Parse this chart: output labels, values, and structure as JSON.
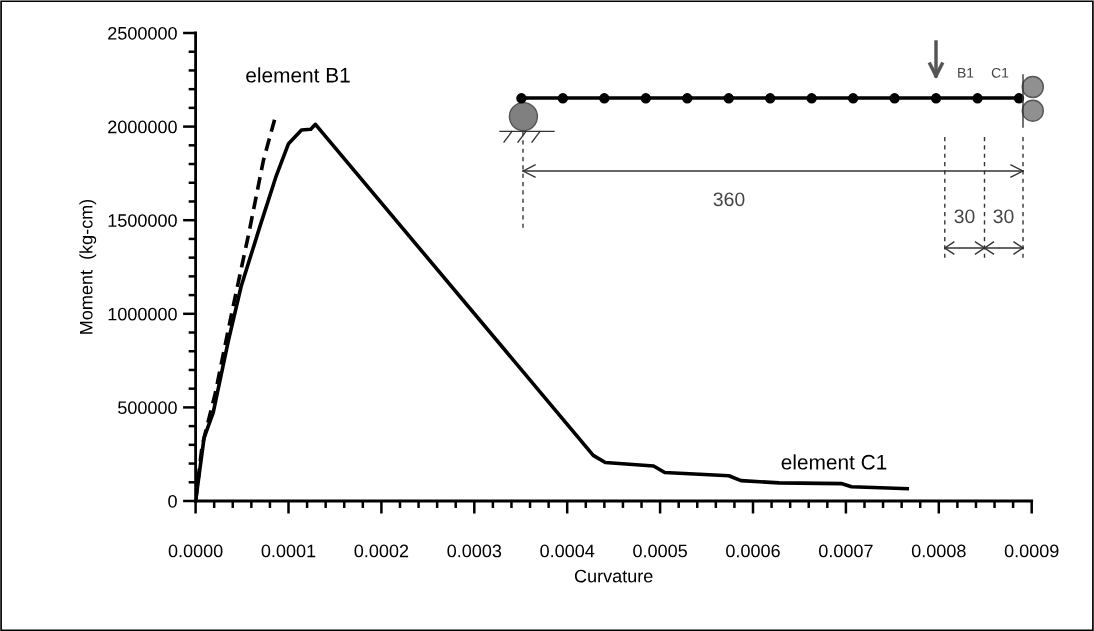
{
  "chart_data": {
    "type": "line",
    "xlabel": "Curvature",
    "ylabel": "Moment  (kg-cm)",
    "xlim": [
      0,
      0.0009
    ],
    "ylim": [
      0,
      2500000
    ],
    "xticks": [
      {
        "value": 0,
        "label": "0.0000"
      },
      {
        "value": 0.0001,
        "label": "0.0001"
      },
      {
        "value": 0.0002,
        "label": "0.0002"
      },
      {
        "value": 0.0003,
        "label": "0.0003"
      },
      {
        "value": 0.0004,
        "label": "0.0004"
      },
      {
        "value": 0.0005,
        "label": "0.0005"
      },
      {
        "value": 0.0006,
        "label": "0.0006"
      },
      {
        "value": 0.0007,
        "label": "0.0007"
      },
      {
        "value": 0.0008,
        "label": "0.0008"
      },
      {
        "value": 0.0009,
        "label": "0.0009"
      }
    ],
    "yticks": [
      0,
      500000,
      1000000,
      1500000,
      2000000,
      2500000
    ],
    "grid": false,
    "legend": false,
    "marker": "none",
    "series": [
      {
        "name": "element B1",
        "color": "#000000",
        "line_style": "dashed",
        "x": [
          0,
          7e-06,
          2.1e-05,
          3.9e-05,
          5.7e-05,
          7.3e-05,
          8.5e-05
        ],
        "values": [
          0,
          295000,
          572000,
          1007000,
          1423000,
          1820000,
          2037000
        ]
      },
      {
        "name": "element C1",
        "color": "#000000",
        "line_style": "solid",
        "x": [
          0,
          9.1e-06,
          1.9e-05,
          3.5e-05,
          4.9e-05,
          6.9e-05,
          8.7e-05,
          0.0001,
          0.000114,
          0.000124,
          0.000129,
          0.000428,
          0.000441,
          0.000493,
          0.000505,
          0.000574,
          0.000587,
          0.000628,
          0.000695,
          0.000706,
          0.000766
        ],
        "values": [
          0,
          337000,
          473000,
          850000,
          1146000,
          1463000,
          1740000,
          1909000,
          1982000,
          1986000,
          2012000,
          244000,
          206000,
          187000,
          152000,
          135000,
          109000,
          97000,
          93000,
          76000,
          66000
        ]
      }
    ],
    "annotations": [
      "B1",
      "C1",
      "360",
      "30",
      "30"
    ]
  }
}
